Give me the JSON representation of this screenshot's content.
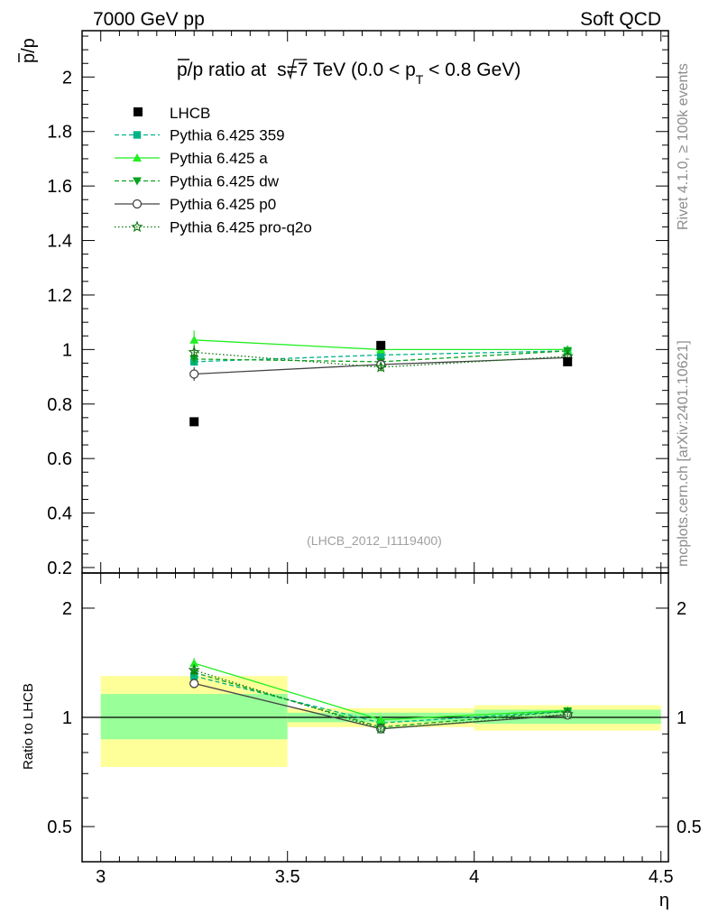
{
  "header": {
    "left": "7000 GeV pp",
    "right": "Soft QCD"
  },
  "side_labels": {
    "rivet": "Rivet 4.1.0, ≥ 100k events",
    "mcplots": "mcplots.cern.ch [arXiv:2401.10621]"
  },
  "chart_data": {
    "type": "line",
    "title": "p̄/p ratio at √s=7 TeV (0.0 < p_T < 0.8 GeV)",
    "title_parts": {
      "main": "p/p ratio at ",
      "sqrt": "s=7 TeV (0.0 < p",
      "sub": "T",
      "tail": " < 0.8 GeV)"
    },
    "analysis_id": "(LHCB_2012_I1119400)",
    "xlabel": "η",
    "ylabel": "p/p",
    "ratio_ylabel": "Ratio to LHCB",
    "xlim": [
      2.95,
      4.52
    ],
    "ylim": [
      0.18,
      2.17
    ],
    "ratio_ylim": [
      0.4,
      2.5
    ],
    "x_ticks": [
      3,
      3.5,
      4,
      4.5
    ],
    "x_tick_labels": [
      "3",
      "3.5",
      "4",
      "4.5"
    ],
    "y_ticks": [
      0.2,
      0.4,
      0.6,
      0.8,
      1,
      1.2,
      1.4,
      1.6,
      1.8,
      2
    ],
    "y_tick_labels": [
      "0.2",
      "0.4",
      "0.6",
      "0.8",
      "1",
      "1.2",
      "1.4",
      "1.6",
      "1.8",
      "2"
    ],
    "ratio_ticks": [
      0.5,
      1,
      2
    ],
    "ratio_tick_labels": [
      "0.5",
      "1",
      "2"
    ],
    "x": [
      3.25,
      3.75,
      4.25
    ],
    "bins": [
      [
        3.0,
        3.5
      ],
      [
        3.5,
        4.0
      ],
      [
        4.0,
        4.5
      ]
    ],
    "reference": {
      "name": "LHCB",
      "values": [
        0.735,
        1.015,
        0.955
      ],
      "band_inner": [
        [
          0.87,
          1.16
        ],
        [
          0.97,
          1.03
        ],
        [
          0.96,
          1.05
        ]
      ],
      "band_outer": [
        [
          0.73,
          1.3
        ],
        [
          0.94,
          1.06
        ],
        [
          0.92,
          1.08
        ]
      ]
    },
    "series": [
      {
        "name": "Pythia 6.425 359",
        "color": "#00b386",
        "dash": "5,3",
        "marker": "square",
        "values": [
          0.955,
          0.98,
          0.995
        ],
        "errors": [
          0.015,
          0.01,
          0.01
        ],
        "ratio": [
          1.3,
          0.965,
          1.04
        ]
      },
      {
        "name": "Pythia 6.425 a",
        "color": "#22ee22",
        "dash": "",
        "marker": "triangle-up",
        "values": [
          1.035,
          1.0,
          1.0
        ],
        "errors": [
          0.035,
          0.015,
          0.015
        ],
        "ratio": [
          1.41,
          0.985,
          1.045
        ]
      },
      {
        "name": "Pythia 6.425 dw",
        "color": "#0aa320",
        "dash": "5,3",
        "marker": "triangle-down",
        "values": [
          0.965,
          0.955,
          0.995
        ],
        "errors": [
          0.02,
          0.015,
          0.015
        ],
        "ratio": [
          1.33,
          0.94,
          1.04
        ]
      },
      {
        "name": "Pythia 6.425 p0",
        "color": "#444444",
        "dash": "",
        "marker": "circle-open",
        "values": [
          0.91,
          0.945,
          0.97
        ],
        "errors": [
          0.025,
          0.015,
          0.015
        ],
        "ratio": [
          1.24,
          0.93,
          1.015
        ]
      },
      {
        "name": "Pythia 6.425 pro-q2o",
        "color": "#117711",
        "dash": "1.5,2.5",
        "marker": "star-open",
        "values": [
          0.99,
          0.935,
          0.975
        ],
        "errors": [
          0.025,
          0.015,
          0.015
        ],
        "ratio": [
          1.35,
          0.93,
          1.02
        ]
      }
    ]
  }
}
